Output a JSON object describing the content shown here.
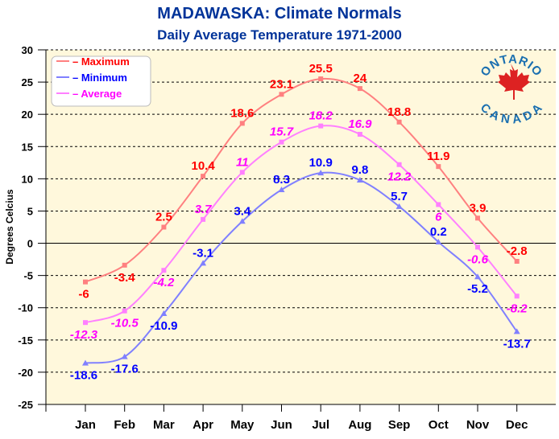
{
  "chart_data": {
    "type": "line",
    "title": "MADAWASKA: Climate Normals",
    "subtitle": "Daily Average Temperature 1971-2000",
    "xlabel": "",
    "ylabel": "Degrees Celcius",
    "ylim": [
      -25,
      30
    ],
    "yticks": [
      30,
      25,
      20,
      15,
      10,
      5,
      0,
      -5,
      -10,
      -15,
      -20,
      -25
    ],
    "categories": [
      "Jan",
      "Feb",
      "Mar",
      "Apr",
      "May",
      "Jun",
      "Jul",
      "Aug",
      "Sep",
      "Oct",
      "Nov",
      "Dec"
    ],
    "grid": true,
    "legend_placement": "top-left",
    "series": [
      {
        "name": "Maximum",
        "values": [
          -6,
          -3.4,
          2.5,
          10.4,
          18.6,
          23.1,
          25.5,
          24,
          18.8,
          11.9,
          3.9,
          -2.8
        ],
        "line_color": "#ff8080",
        "label_color": "#ff0000"
      },
      {
        "name": "Minimum",
        "values": [
          -18.6,
          -17.6,
          -10.9,
          -3.1,
          3.4,
          8.3,
          10.9,
          9.8,
          5.7,
          0.2,
          -5.2,
          -13.7
        ],
        "line_color": "#8080ff",
        "label_color": "#0000ff"
      },
      {
        "name": "Average",
        "values": [
          -12.3,
          -10.5,
          -4.2,
          3.7,
          11,
          15.7,
          18.2,
          16.9,
          12.2,
          6,
          -0.6,
          -8.2
        ],
        "line_color": "#ff80ff",
        "label_color": "#ff00ff"
      }
    ]
  },
  "logo": {
    "top": "ONTARIO",
    "bottom": "CANADA"
  },
  "colors": {
    "plot_bg": "#fff8dc",
    "title": "#003399"
  }
}
